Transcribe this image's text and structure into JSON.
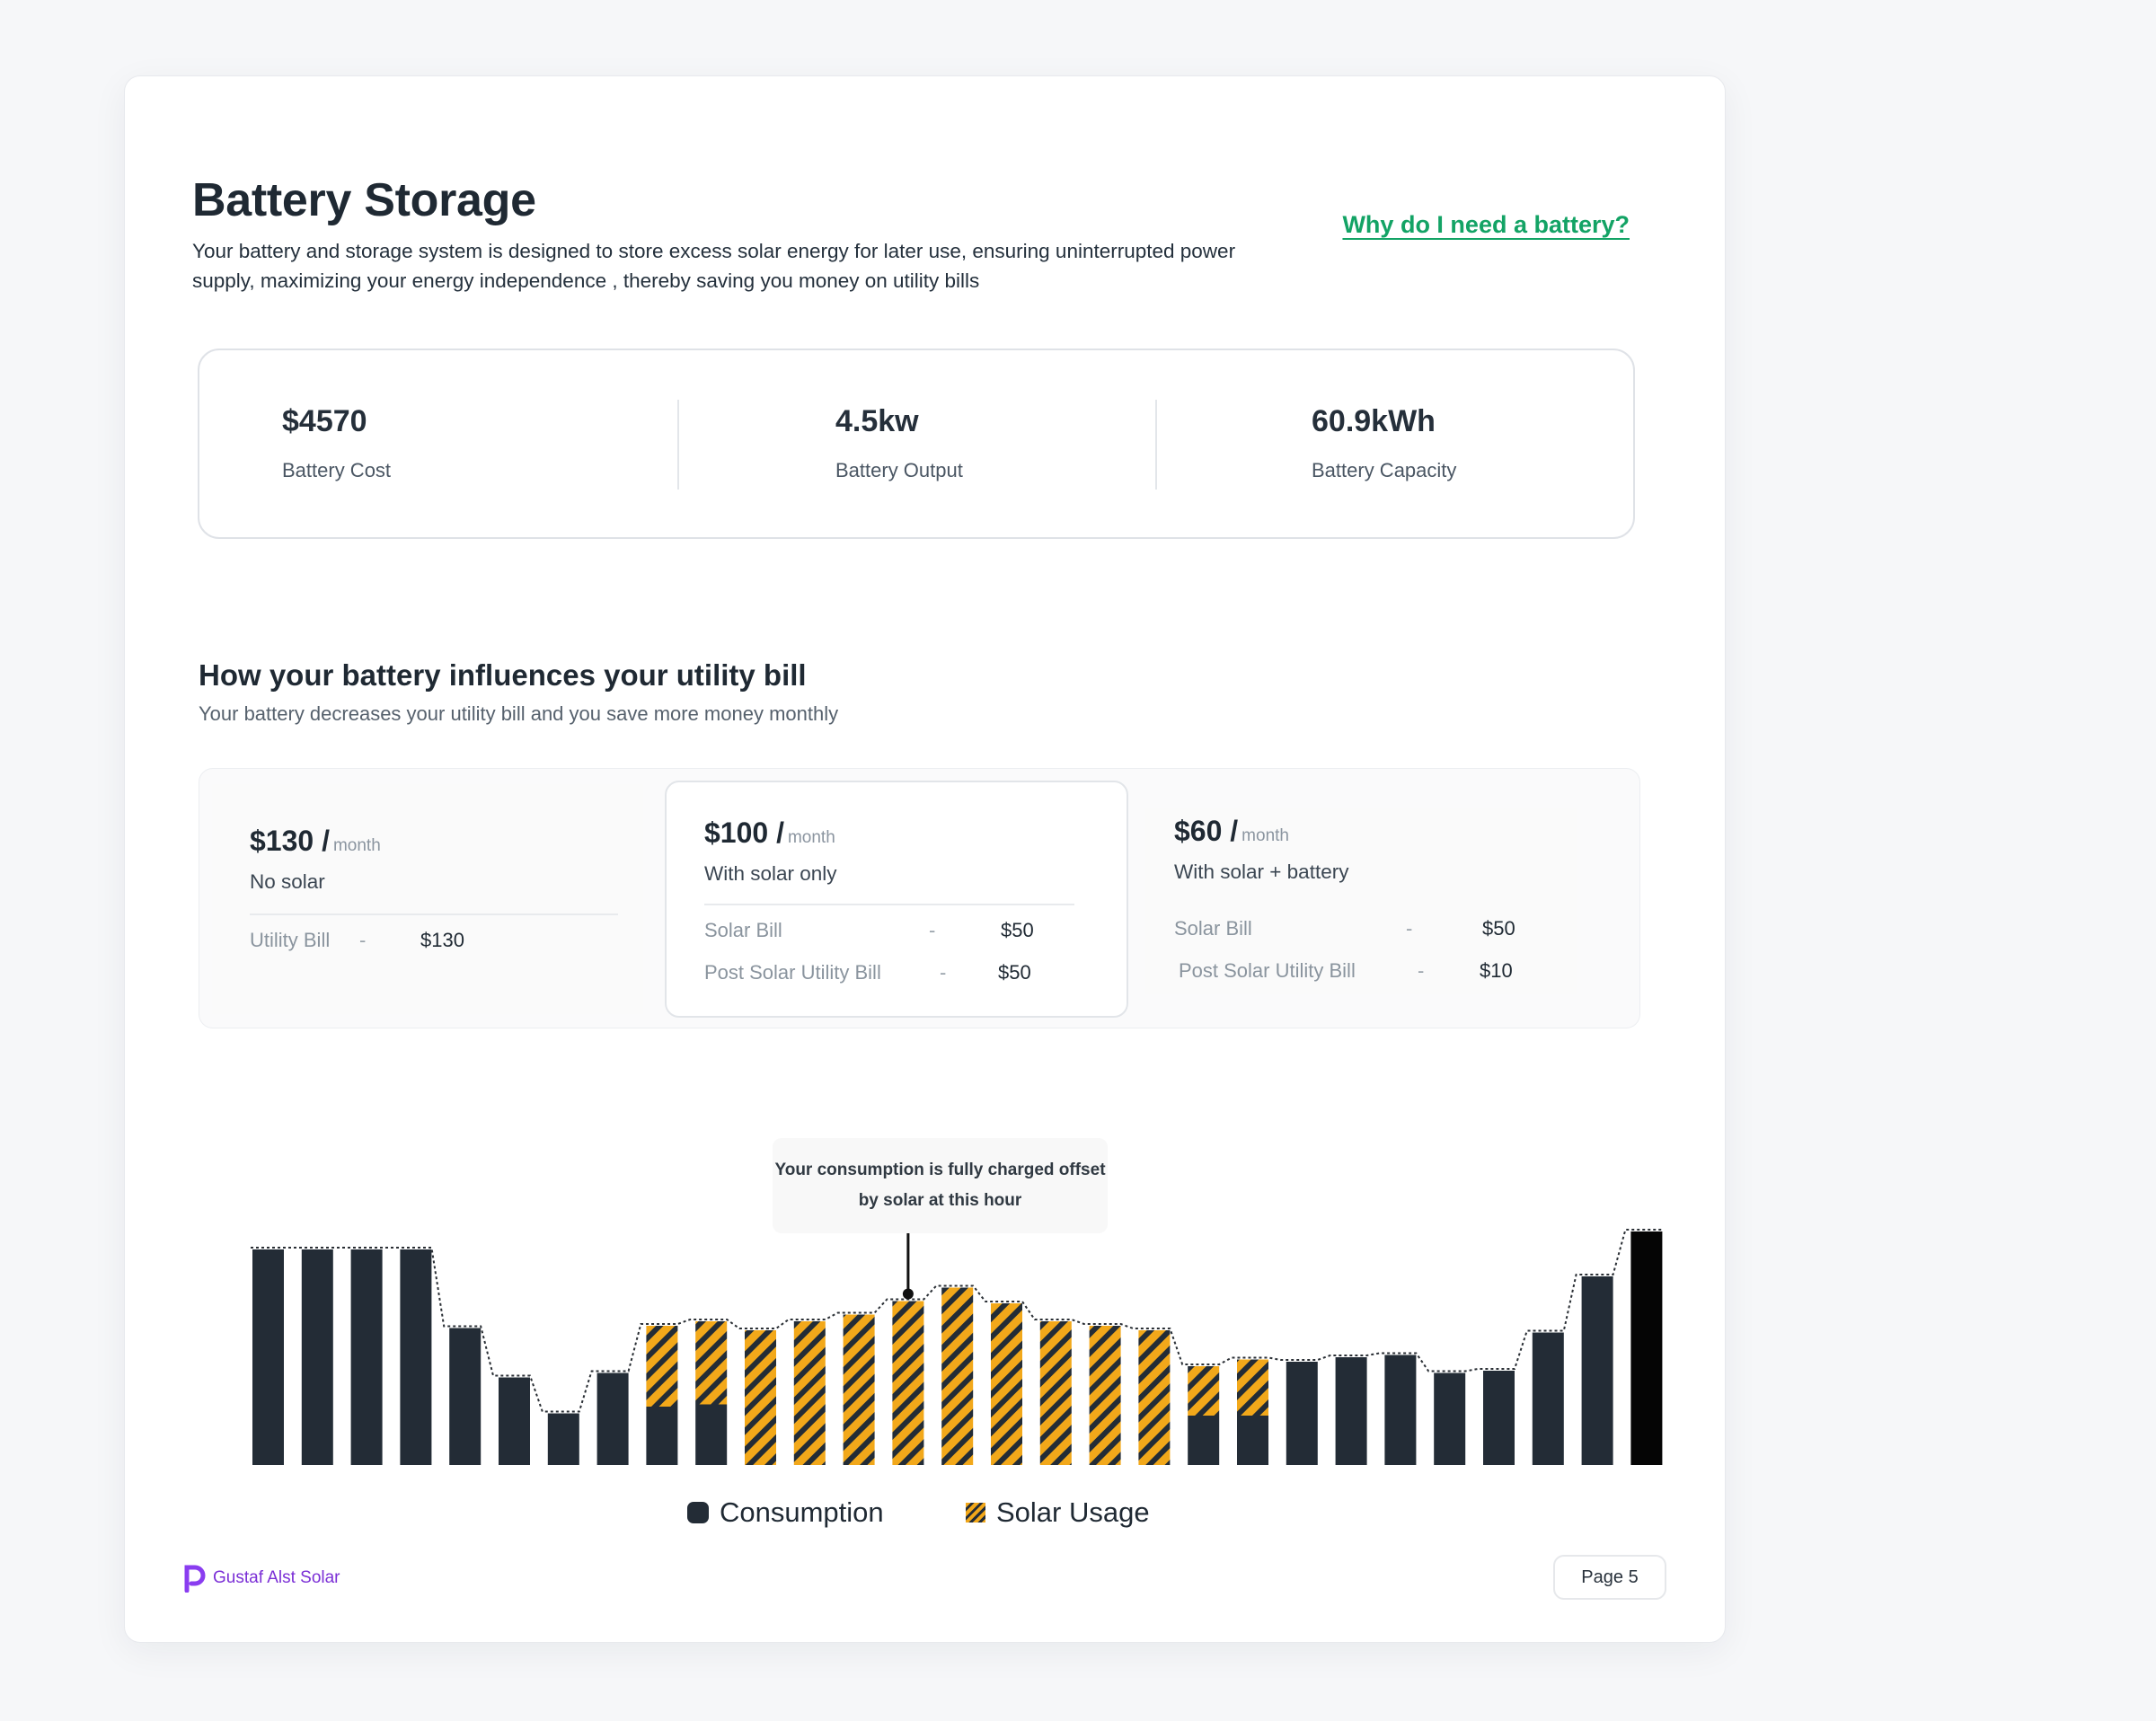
{
  "header": {
    "title": "Battery Storage",
    "description": "Your battery and storage system is designed to store excess solar energy for later use, ensuring uninterrupted power supply, maximizing your energy independence , thereby saving you money on utility bills",
    "link": "Why do I need a battery?"
  },
  "stats": [
    {
      "value": "$4570",
      "label": "Battery Cost"
    },
    {
      "value": "4.5kw",
      "label": "Battery Output"
    },
    {
      "value": "60.9kWh",
      "label": "Battery Capacity"
    }
  ],
  "influence": {
    "title": "How your battery influences your utility bill",
    "subtitle": "Your battery decreases your utility bill and you save more money monthly"
  },
  "plans": {
    "no_solar": {
      "price": "$130 /",
      "per": "month",
      "name": "No solar",
      "rows": [
        {
          "label": "Utility Bill",
          "dash": "-",
          "value": "$130"
        }
      ]
    },
    "solar": {
      "price": "$100 /",
      "per": "month",
      "name": "With solar only",
      "rows": [
        {
          "label": "Solar Bill",
          "dash": "-",
          "value": "$50"
        },
        {
          "label": "Post Solar Utility Bill",
          "dash": "-",
          "value": "$50"
        }
      ]
    },
    "battery": {
      "price": "$60 /",
      "per": "month",
      "name": "With solar + battery",
      "rows": [
        {
          "label": "Solar Bill",
          "dash": "-",
          "value": "$50"
        },
        {
          "label": "Post Solar Utility Bill",
          "dash": "-",
          "value": "$10"
        }
      ]
    }
  },
  "chart_data": {
    "type": "bar",
    "stacked": true,
    "series": [
      {
        "name": "Consumption",
        "color": "#232c36",
        "values": [
          96,
          96,
          96,
          96,
          61,
          39,
          23,
          41,
          26,
          27,
          0,
          0,
          0,
          0,
          0,
          0,
          0,
          0,
          0,
          22,
          22,
          46,
          48,
          49,
          41,
          42,
          59,
          84,
          104
        ]
      },
      {
        "name": "Solar Usage",
        "color": "#f2a81a",
        "values": [
          0,
          0,
          0,
          0,
          0,
          0,
          0,
          0,
          36,
          37,
          60,
          64,
          67,
          73,
          79,
          72,
          64,
          62,
          60,
          22,
          25,
          0,
          0,
          0,
          0,
          0,
          0,
          0,
          0
        ]
      }
    ],
    "highlight_index": 13,
    "tooltip": "Your consumption is fully charged offset by solar at this hour"
  },
  "footer": {
    "brand": "Gustaf Alst Solar",
    "page": "Page 5"
  }
}
